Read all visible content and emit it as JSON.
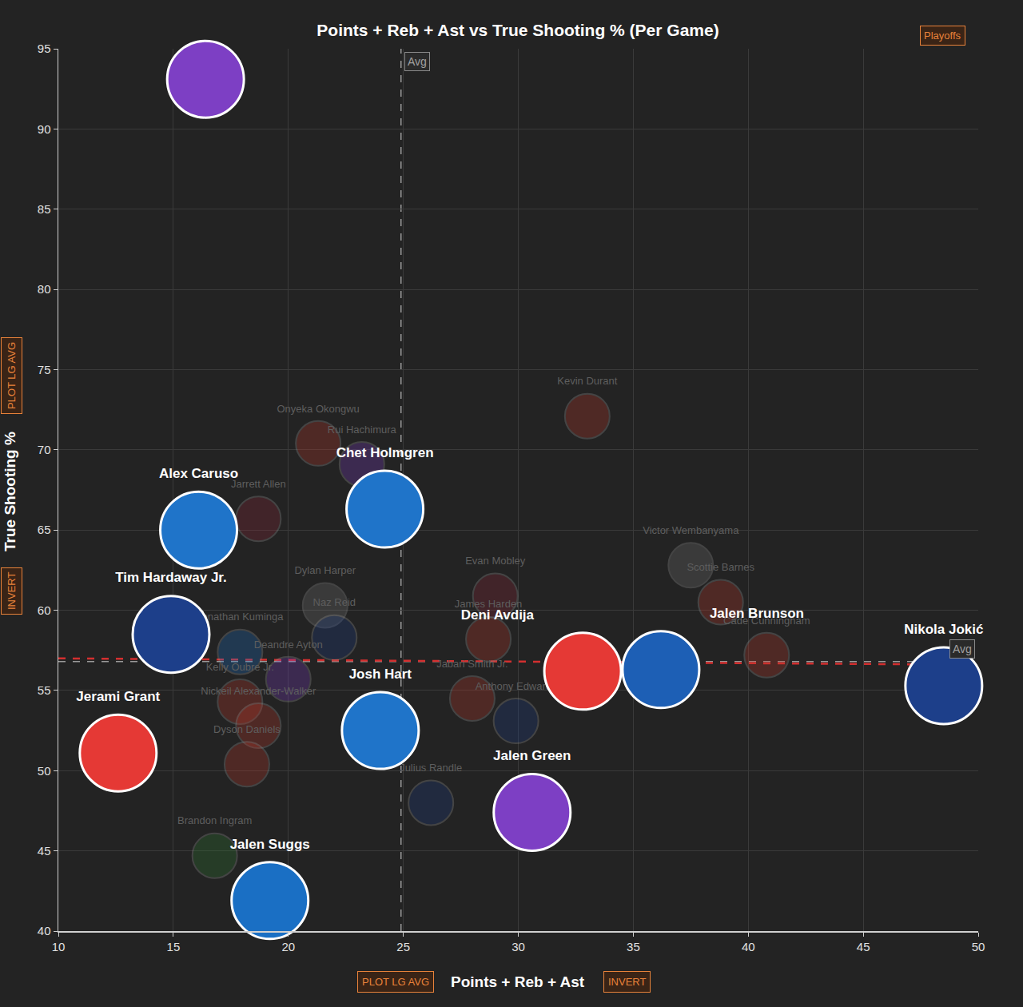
{
  "chart_data": {
    "type": "scatter",
    "title": "Points + Reb + Ast vs True Shooting % (Per Game)",
    "x_label": "Points + Reb + Ast",
    "y_label": "True Shooting %",
    "badge": "Playoffs",
    "x_buttons": [
      "PLOT LG AVG",
      "INVERT"
    ],
    "y_buttons": [
      "PLOT LG AVG",
      "INVERT"
    ],
    "xlim": [
      10,
      50
    ],
    "ylim": [
      40,
      95
    ],
    "xticks": [
      10,
      15,
      20,
      25,
      30,
      35,
      40,
      45,
      50
    ],
    "yticks": [
      40,
      45,
      50,
      55,
      60,
      65,
      70,
      75,
      80,
      85,
      90,
      95
    ],
    "grid": true,
    "avg_label": "Avg",
    "x_avg": 24.9,
    "y_avg": 56.8,
    "trend": {
      "x": [
        10,
        50
      ],
      "y": [
        57.0,
        56.6
      ],
      "color": "#d32f2f",
      "line_style": "dashed"
    },
    "points": [
      {
        "label": null,
        "x": 16.4,
        "y": 93.1,
        "color": "#7d3fc4"
      },
      {
        "label": "Alex Caruso",
        "x": 16.1,
        "y": 65.0,
        "color": "#1f74c9"
      },
      {
        "label": "Chet Holmgren",
        "x": 24.2,
        "y": 66.3,
        "color": "#1f74c9"
      },
      {
        "label": "Tim Hardaway Jr.",
        "x": 14.9,
        "y": 58.5,
        "color": "#1d3f8a"
      },
      {
        "label": "Jerami Grant",
        "x": 12.6,
        "y": 51.1,
        "color": "#e53935"
      },
      {
        "label": "Josh Hart",
        "x": 24.0,
        "y": 52.5,
        "color": "#1f74c9"
      },
      {
        "label": "Jalen Suggs",
        "x": 19.2,
        "y": 41.9,
        "color": "#1a6fc4"
      },
      {
        "label": "Jalen Green",
        "x": 30.6,
        "y": 47.4,
        "color": "#7d3fc4"
      },
      {
        "label": "Deni Avdija",
        "x": 32.8,
        "y": 56.2,
        "color": "#e53935"
      },
      {
        "label": "Jalen Brunson",
        "x": 36.2,
        "y": 56.3,
        "color": "#1d5fb5"
      },
      {
        "label": "Nikola Jokić",
        "x": 48.5,
        "y": 55.3,
        "color": "#1d3f8a"
      }
    ],
    "background_points": [
      {
        "label": "Kevin Durant",
        "x": 33.0,
        "y": 72.1,
        "color": "#c0392b"
      },
      {
        "label": "Onyeka Okongwu",
        "x": 21.3,
        "y": 70.4,
        "color": "#c0392b"
      },
      {
        "label": "Rui Hachimura",
        "x": 23.2,
        "y": 69.1,
        "color": "#7d3fc4"
      },
      {
        "label": "Jarrett Allen",
        "x": 18.7,
        "y": 65.7,
        "color": "#8e2a3a"
      },
      {
        "label": "Dylan Harper",
        "x": 21.6,
        "y": 60.3,
        "color": "#777777"
      },
      {
        "label": "Naz Reid",
        "x": 22.0,
        "y": 58.3,
        "color": "#1d3f8a"
      },
      {
        "label": "Jonathan Kuminga",
        "x": 17.9,
        "y": 57.4,
        "color": "#1f74c9"
      },
      {
        "label": "Deandre Ayton",
        "x": 20.0,
        "y": 55.7,
        "color": "#7d3fc4"
      },
      {
        "label": "Kelly Oubre Jr.",
        "x": 17.9,
        "y": 54.3,
        "color": "#c0392b"
      },
      {
        "label": "Nickeil Alexander-Walker",
        "x": 18.7,
        "y": 52.8,
        "color": "#c0392b"
      },
      {
        "label": "Dyson Daniels",
        "x": 18.2,
        "y": 50.4,
        "color": "#c0392b"
      },
      {
        "label": "Brandon Ingram",
        "x": 16.8,
        "y": 44.7,
        "color": "#2e7d32"
      },
      {
        "label": "Evan Mobley",
        "x": 29.0,
        "y": 60.9,
        "color": "#8e2a3a"
      },
      {
        "label": "James Harden",
        "x": 28.7,
        "y": 58.2,
        "color": "#c0392b"
      },
      {
        "label": "Jabari Smith Jr.",
        "x": 28.0,
        "y": 54.5,
        "color": "#c0392b"
      },
      {
        "label": "Anthony Edwards",
        "x": 29.9,
        "y": 53.1,
        "color": "#1d3f8a"
      },
      {
        "label": "Julius Randle",
        "x": 26.2,
        "y": 48.0,
        "color": "#1d3f8a"
      },
      {
        "label": "Victor Wembanyama",
        "x": 37.5,
        "y": 62.8,
        "color": "#777777"
      },
      {
        "label": "Scottie Barnes",
        "x": 38.8,
        "y": 60.5,
        "color": "#c0392b"
      },
      {
        "label": "Cade Cunningham",
        "x": 40.8,
        "y": 57.2,
        "color": "#c0392b"
      }
    ]
  }
}
